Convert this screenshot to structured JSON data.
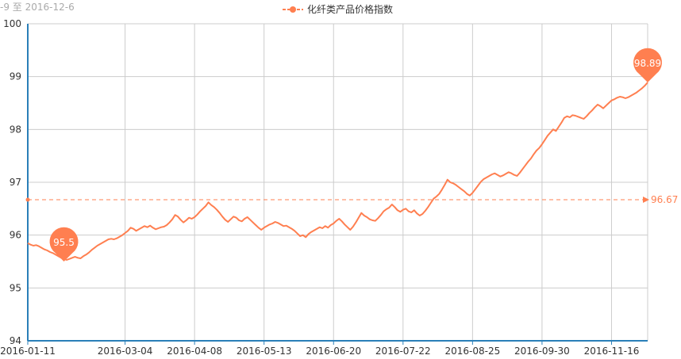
{
  "chart_data": {
    "type": "line",
    "subtitle": "-9 至 2016-12-6",
    "legend": "化纤类产品价格指数",
    "color": "#ff7f50",
    "ylim": [
      94,
      100
    ],
    "yticks": [
      "94",
      "95",
      "96",
      "97",
      "98",
      "99",
      "100"
    ],
    "xticks": [
      "2016-01-11",
      "2016-03-04",
      "2016-04-08",
      "2016-05-13",
      "2016-06-20",
      "2016-07-22",
      "2016-08-25",
      "2016-09-30",
      "2016-11-16"
    ],
    "xtick_index": [
      0,
      35,
      60,
      85,
      110,
      135,
      160,
      185,
      210
    ],
    "grid": true,
    "values": [
      95.85,
      95.82,
      95.8,
      95.81,
      95.79,
      95.76,
      95.73,
      95.71,
      95.68,
      95.66,
      95.63,
      95.6,
      95.57,
      95.55,
      95.53,
      95.55,
      95.57,
      95.59,
      95.57,
      95.56,
      95.6,
      95.63,
      95.67,
      95.72,
      95.76,
      95.8,
      95.83,
      95.86,
      95.89,
      95.92,
      95.93,
      95.92,
      95.94,
      95.97,
      96.0,
      96.04,
      96.08,
      96.14,
      96.12,
      96.08,
      96.11,
      96.14,
      96.17,
      96.15,
      96.18,
      96.14,
      96.11,
      96.13,
      96.15,
      96.16,
      96.19,
      96.24,
      96.3,
      96.38,
      96.35,
      96.29,
      96.24,
      96.28,
      96.33,
      96.31,
      96.34,
      96.39,
      96.45,
      96.5,
      96.55,
      96.62,
      96.57,
      96.53,
      96.48,
      96.42,
      96.35,
      96.29,
      96.25,
      96.3,
      96.35,
      96.33,
      96.28,
      96.26,
      96.31,
      96.34,
      96.29,
      96.24,
      96.19,
      96.14,
      96.1,
      96.14,
      96.17,
      96.2,
      96.22,
      96.25,
      96.23,
      96.2,
      96.17,
      96.18,
      96.15,
      96.12,
      96.08,
      96.03,
      95.98,
      96.0,
      95.96,
      96.02,
      96.06,
      96.09,
      96.12,
      96.15,
      96.13,
      96.17,
      96.14,
      96.19,
      96.22,
      96.27,
      96.31,
      96.26,
      96.2,
      96.15,
      96.1,
      96.16,
      96.24,
      96.33,
      96.42,
      96.37,
      96.34,
      96.3,
      96.28,
      96.27,
      96.32,
      96.38,
      96.45,
      96.49,
      96.52,
      96.58,
      96.53,
      96.47,
      96.44,
      96.48,
      96.5,
      96.45,
      96.43,
      96.47,
      96.41,
      96.37,
      96.4,
      96.46,
      96.53,
      96.61,
      96.69,
      96.73,
      96.78,
      96.86,
      96.95,
      97.05,
      97.0,
      96.98,
      96.95,
      96.91,
      96.87,
      96.83,
      96.78,
      96.75,
      96.8,
      96.87,
      96.94,
      97.01,
      97.06,
      97.09,
      97.12,
      97.15,
      97.17,
      97.14,
      97.11,
      97.13,
      97.16,
      97.19,
      97.17,
      97.14,
      97.12,
      97.18,
      97.25,
      97.32,
      97.39,
      97.45,
      97.53,
      97.6,
      97.65,
      97.72,
      97.8,
      97.88,
      97.94,
      98.0,
      97.97,
      98.05,
      98.13,
      98.22,
      98.25,
      98.23,
      98.27,
      98.26,
      98.24,
      98.22,
      98.2,
      98.25,
      98.31,
      98.36,
      98.42,
      98.47,
      98.44,
      98.4,
      98.45,
      98.5,
      98.55,
      98.57,
      98.6,
      98.62,
      98.61,
      98.59,
      98.61,
      98.64,
      98.67,
      98.7,
      98.74,
      98.78,
      98.83,
      98.89
    ],
    "max": {
      "value": 98.89,
      "label": "98.89"
    },
    "min": {
      "value": 95.5,
      "label": "95.5",
      "index": 13
    },
    "average": {
      "value": 96.67,
      "label": "96.67"
    }
  }
}
